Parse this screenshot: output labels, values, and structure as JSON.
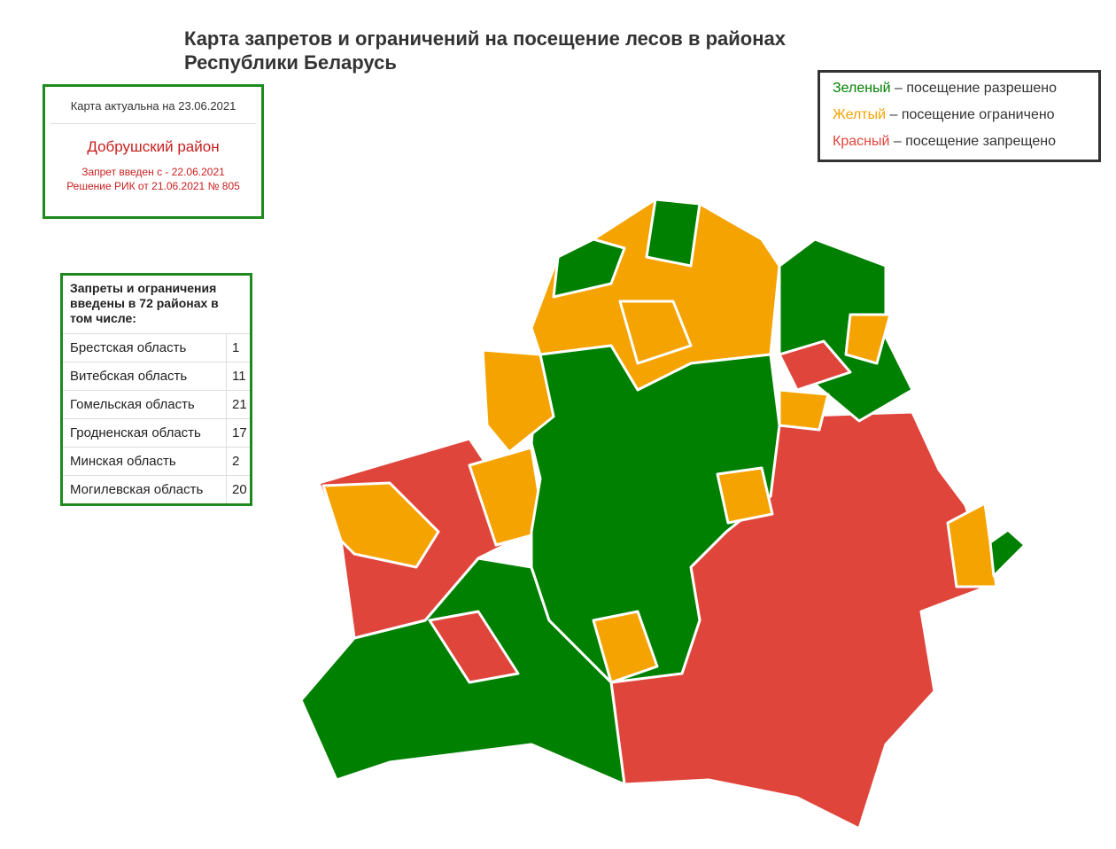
{
  "title": [
    "Карта запретов и ограничений на посещение лесов в районах",
    "Республики Беларусь"
  ],
  "info": {
    "date": "Карта актуальна на 23.06.2021",
    "district": "Добрушский район",
    "ban": "Запрет введен с - 22.06.2021",
    "decision": "Решение РИК от 21.06.2021 № 805"
  },
  "legend": [
    {
      "color_name": "Зеленый",
      "text": "– посещение разрешено",
      "color": "#008000"
    },
    {
      "color_name": "Желтый",
      "text": "– посещение ограничено",
      "color": "#f5a300"
    },
    {
      "color_name": "Красный",
      "text": "– посещение запрещено",
      "color": "#e0453c"
    }
  ],
  "table": {
    "header": "Запреты и ограничения введены в 72 районах в том числе:",
    "rows": [
      [
        "Брестская область",
        "1"
      ],
      [
        "Витебская область",
        "11"
      ],
      [
        "Гомельская область",
        "21"
      ],
      [
        "Гродненская область",
        "17"
      ],
      [
        "Минская область",
        "2"
      ],
      [
        "Могилевская область",
        "20"
      ]
    ]
  }
}
